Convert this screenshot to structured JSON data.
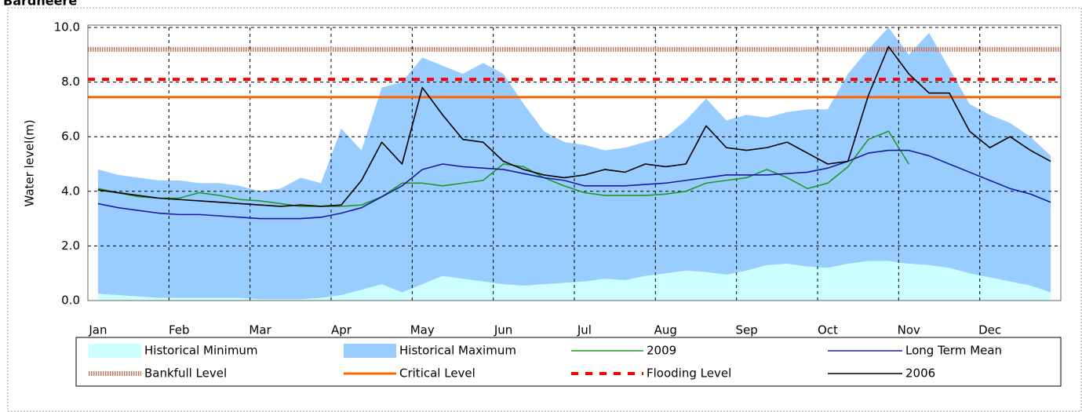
{
  "chart_data": {
    "type": "line",
    "title": "Bardheere",
    "y_label": "Water level(m)",
    "categories": [
      "Jan",
      null,
      null,
      null,
      "Feb",
      null,
      null,
      null,
      "Mar",
      null,
      null,
      null,
      "Apr",
      null,
      null,
      null,
      "May",
      null,
      null,
      null,
      "Jun",
      null,
      null,
      null,
      "Jul",
      null,
      null,
      null,
      "Aug",
      null,
      null,
      null,
      "Sep",
      null,
      null,
      null,
      "Oct",
      null,
      null,
      null,
      "Nov",
      null,
      null,
      null,
      "Dec",
      null,
      null,
      null
    ],
    "ylim": [
      0,
      10
    ],
    "yticks": [
      {
        "value": 0,
        "label": "0.0"
      },
      {
        "value": 2,
        "label": "2.0"
      },
      {
        "value": 4,
        "label": "4.0"
      },
      {
        "value": 6,
        "label": "6.0"
      },
      {
        "value": 8,
        "label": "8.0"
      },
      {
        "value": 10,
        "label": "10.0"
      }
    ],
    "grid": true,
    "series": [
      {
        "name": "Historical Minimum",
        "color": "#ccffff",
        "kind": "area",
        "values": [
          0.25,
          0.2,
          0.15,
          0.1,
          0.1,
          0.1,
          0.1,
          0.1,
          0.05,
          0.05,
          0.05,
          0.1,
          0.2,
          0.4,
          0.6,
          0.3,
          0.6,
          0.9,
          0.8,
          0.7,
          0.6,
          0.55,
          0.6,
          0.65,
          0.7,
          0.8,
          0.75,
          0.9,
          1.0,
          1.1,
          1.05,
          0.95,
          1.1,
          1.3,
          1.35,
          1.25,
          1.2,
          1.35,
          1.45,
          1.45,
          1.35,
          1.3,
          1.2,
          1.0,
          0.85,
          0.7,
          0.55,
          0.3
        ]
      },
      {
        "name": "Historical Maximum",
        "color": "#99ccff",
        "kind": "area",
        "values": [
          4.8,
          4.6,
          4.5,
          4.4,
          4.4,
          4.3,
          4.3,
          4.2,
          4.0,
          4.1,
          4.5,
          4.3,
          6.3,
          5.5,
          7.8,
          8.0,
          8.9,
          8.6,
          8.3,
          8.7,
          8.3,
          7.2,
          6.2,
          5.8,
          5.7,
          5.5,
          5.6,
          5.8,
          6.0,
          6.6,
          7.4,
          6.6,
          6.8,
          6.7,
          6.9,
          7.0,
          7.0,
          8.3,
          9.2,
          10.0,
          9.0,
          9.8,
          8.5,
          7.2,
          6.8,
          6.5,
          6.0,
          5.3
        ]
      },
      {
        "name": "2009",
        "color": "#229922",
        "kind": "line",
        "values": [
          4.1,
          3.95,
          3.8,
          3.75,
          3.75,
          3.95,
          3.85,
          3.7,
          3.65,
          3.55,
          3.45,
          3.45,
          3.45,
          3.5,
          3.8,
          4.3,
          4.3,
          4.2,
          4.3,
          4.4,
          5.0,
          4.9,
          4.5,
          4.2,
          3.95,
          3.85,
          3.85,
          3.85,
          3.9,
          4.0,
          4.3,
          4.4,
          4.5,
          4.8,
          4.5,
          4.1,
          4.3,
          4.9,
          5.9,
          6.2,
          5.0,
          null,
          null,
          null,
          null,
          null,
          null,
          null
        ]
      },
      {
        "name": "Long Term Mean",
        "color": "#1a1aa0",
        "kind": "line",
        "values": [
          3.55,
          3.4,
          3.3,
          3.2,
          3.15,
          3.15,
          3.1,
          3.05,
          3.0,
          3.0,
          3.0,
          3.05,
          3.2,
          3.4,
          3.8,
          4.2,
          4.8,
          5.0,
          4.9,
          4.85,
          4.8,
          4.65,
          4.5,
          4.4,
          4.2,
          4.2,
          4.2,
          4.25,
          4.3,
          4.4,
          4.5,
          4.6,
          4.6,
          4.6,
          4.65,
          4.7,
          4.85,
          5.1,
          5.4,
          5.5,
          5.5,
          5.3,
          5.0,
          4.7,
          4.4,
          4.1,
          3.9,
          3.6
        ]
      },
      {
        "name": "Bankfull Level",
        "color": "#c07860",
        "kind": "hline",
        "style": "hatched",
        "value": 9.2
      },
      {
        "name": "Critical Level",
        "color": "#ff6600",
        "kind": "hline",
        "style": "solid",
        "value": 7.45
      },
      {
        "name": "Flooding Level",
        "color": "#ff0000",
        "kind": "hline",
        "style": "dashed",
        "value": 8.1
      },
      {
        "name": "2006",
        "color": "#000000",
        "kind": "line",
        "values": [
          4.05,
          3.95,
          3.85,
          3.75,
          3.7,
          3.65,
          3.6,
          3.55,
          3.5,
          3.45,
          3.5,
          3.45,
          3.5,
          4.4,
          5.8,
          5.0,
          7.8,
          6.8,
          5.9,
          5.8,
          5.1,
          4.8,
          4.6,
          4.5,
          4.6,
          4.8,
          4.7,
          5.0,
          4.9,
          5.0,
          6.4,
          5.6,
          5.5,
          5.6,
          5.8,
          5.4,
          5.0,
          5.1,
          7.5,
          9.3,
          8.3,
          7.6,
          7.6,
          6.2,
          5.6,
          6.0,
          5.5,
          5.1
        ]
      }
    ]
  }
}
